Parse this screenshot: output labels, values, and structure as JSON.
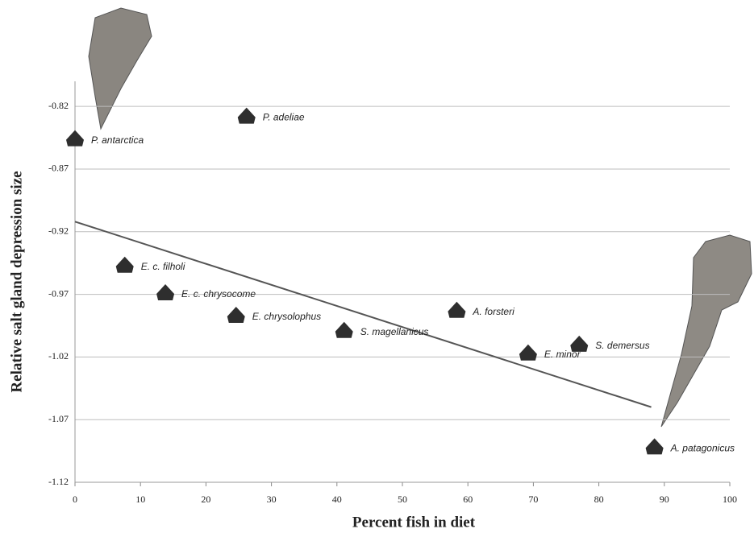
{
  "chart_data": {
    "type": "scatter",
    "x_label": "Percent fish in diet",
    "y_label": "Relative salt gland depression size",
    "xlim": [
      0,
      100
    ],
    "xticks": [
      0,
      10,
      20,
      30,
      40,
      50,
      60,
      70,
      80,
      90,
      100
    ],
    "ylim": [
      -1.12,
      -0.8
    ],
    "yticks": [
      -0.82,
      -0.87,
      -0.92,
      -0.97,
      -1.02,
      -1.07,
      -1.12
    ],
    "grid": true,
    "series": [
      {
        "color": "#2e2e2e",
        "labels": [
          "P. antarctica",
          "P. adeliae",
          "E. c. filholi",
          "E. c. chrysocome",
          "E. chrysolophus",
          "S. magellanicus",
          "A. forsteri",
          "E. minor",
          "S. demersus",
          "A. patagonicus"
        ],
        "x": [
          0,
          26.2,
          7.6,
          13.8,
          24.6,
          41.1,
          58.3,
          69.2,
          77.0,
          88.5
        ],
        "values": [
          -0.846,
          -0.828,
          -0.947,
          -0.969,
          -0.987,
          -0.999,
          -0.983,
          -1.017,
          -1.01,
          -1.092
        ]
      }
    ],
    "trendline": {
      "color": "#555555",
      "x": [
        0,
        88
      ],
      "values": [
        -0.912,
        -1.06
      ]
    }
  }
}
